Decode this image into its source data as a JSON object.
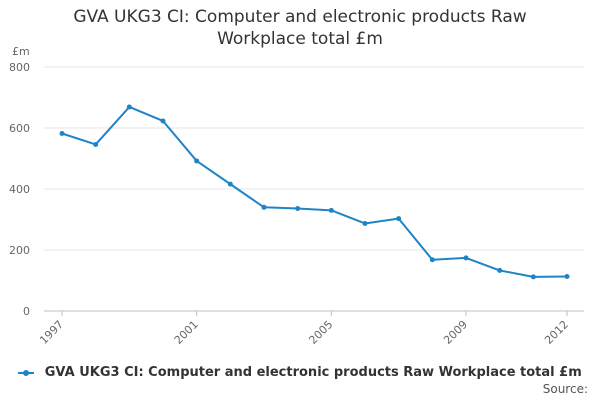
{
  "chart_data": {
    "type": "line",
    "title_lines": [
      "GVA UKG3 CI: Computer and electronic products Raw",
      "Workplace total £m"
    ],
    "ylabel": "£m",
    "xlabel": "",
    "x": [
      1997,
      1998,
      1999,
      2000,
      2001,
      2002,
      2003,
      2004,
      2005,
      2006,
      2007,
      2008,
      2009,
      2010,
      2011,
      2012
    ],
    "x_tick_labels": [
      "1997",
      "2001",
      "2005",
      "2009",
      "2012"
    ],
    "xlim": [
      1997,
      2012
    ],
    "y_ticks": [
      0,
      200,
      400,
      600,
      800
    ],
    "ylim": [
      0,
      800
    ],
    "grid": true,
    "legend_position": "bottom",
    "series": [
      {
        "name": "GVA UKG3 CI: Computer and electronic products Raw Workplace total £m",
        "color": "#1f84c6",
        "values": [
          582,
          546,
          669,
          623,
          492,
          416,
          340,
          336,
          330,
          287,
          303,
          168,
          174,
          133,
          112,
          113
        ]
      }
    ]
  },
  "footer": {
    "source_label": "Source:"
  }
}
